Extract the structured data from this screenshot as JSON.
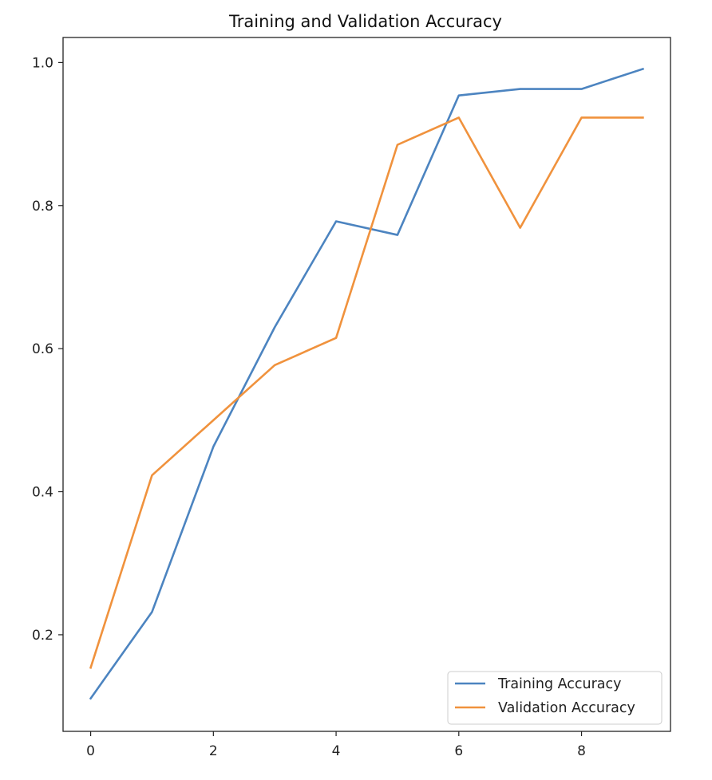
{
  "chart_data": {
    "type": "line",
    "title": "Training and Validation Accuracy",
    "xlabel": "",
    "ylabel": "",
    "x": [
      0,
      1,
      2,
      3,
      4,
      5,
      6,
      7,
      8,
      9
    ],
    "xlim": [
      -0.45,
      9.45
    ],
    "ylim": [
      0.065,
      1.035
    ],
    "xticks": [
      0,
      2,
      4,
      6,
      8
    ],
    "xtick_labels": [
      "0",
      "2",
      "4",
      "6",
      "8"
    ],
    "yticks": [
      0.2,
      0.4,
      0.6,
      0.8,
      1.0
    ],
    "ytick_labels": [
      "0.2",
      "0.4",
      "0.6",
      "0.8",
      "1.0"
    ],
    "grid": false,
    "legend_position": "lower-right",
    "series": [
      {
        "name": "Training Accuracy",
        "color": "#4C84C0",
        "values": [
          0.111,
          0.232,
          0.463,
          0.63,
          0.778,
          0.759,
          0.954,
          0.963,
          0.963,
          0.991
        ]
      },
      {
        "name": "Validation Accuracy",
        "color": "#F0923D",
        "values": [
          0.154,
          0.423,
          0.5,
          0.577,
          0.615,
          0.885,
          0.923,
          0.769,
          0.923,
          0.923
        ]
      }
    ]
  }
}
